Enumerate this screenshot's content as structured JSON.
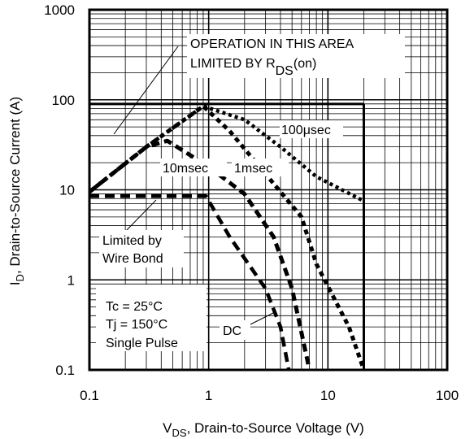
{
  "chart_data": {
    "type": "line",
    "x_scale": "log",
    "y_scale": "log",
    "xlim": [
      0.1,
      100
    ],
    "ylim": [
      0.1,
      1000
    ],
    "grid": true,
    "x_ticks": [
      "0.1",
      "1",
      "10",
      "100"
    ],
    "y_ticks": [
      "1000",
      "100",
      "10",
      "1",
      "0.1"
    ],
    "xlabel": {
      "main": "V",
      "sub": "DS",
      "rest": ", Drain-to-Source Voltage (V)"
    },
    "ylabel": {
      "main": "I",
      "sub": "D",
      "rest": ",  Drain-to-Source Current (A)"
    },
    "series": [
      {
        "name": "100μsec",
        "points": [
          [
            0.1,
            9.5
          ],
          [
            0.3,
            30
          ],
          [
            0.9,
            85
          ],
          [
            2.0,
            60
          ],
          [
            4.0,
            30
          ],
          [
            8.0,
            14
          ],
          [
            20.0,
            7.5
          ]
        ]
      },
      {
        "name": "1msec",
        "points": [
          [
            0.1,
            9.5
          ],
          [
            0.3,
            30
          ],
          [
            0.9,
            85
          ],
          [
            1.5,
            45
          ],
          [
            3.0,
            15
          ],
          [
            6.0,
            5
          ],
          [
            8.0,
            1.5
          ],
          [
            15.0,
            0.3
          ],
          [
            20.0,
            0.1
          ]
        ]
      },
      {
        "name": "10msec",
        "points": [
          [
            0.1,
            9.5
          ],
          [
            0.3,
            30
          ],
          [
            0.45,
            35
          ],
          [
            1.0,
            18
          ],
          [
            2.0,
            9
          ],
          [
            3.5,
            3
          ],
          [
            5.0,
            0.8
          ],
          [
            7.0,
            0.1
          ]
        ]
      },
      {
        "name": "DC",
        "points": [
          [
            0.1,
            8.5
          ],
          [
            0.95,
            8.5
          ],
          [
            1.5,
            3
          ],
          [
            3.0,
            0.8
          ],
          [
            4.0,
            0.3
          ],
          [
            4.7,
            0.1
          ]
        ]
      }
    ],
    "limit_line": {
      "current": 90,
      "voltage_max": 20
    },
    "annotations": {
      "operation_line1": "OPERATION IN THIS AREA",
      "operation_line2_main": "LIMITED BY R",
      "operation_line2_sub": "DS",
      "operation_line2_tail": "(on)",
      "label_100us": "100μsec",
      "label_1ms": "1msec",
      "label_10ms": "10msec",
      "label_dc": "DC",
      "wire_bond_line1": "Limited by",
      "wire_bond_line2": "Wire Bond",
      "conditions": [
        "Tc = 25°C",
        "Tj = 150°C",
        "Single Pulse"
      ]
    }
  }
}
